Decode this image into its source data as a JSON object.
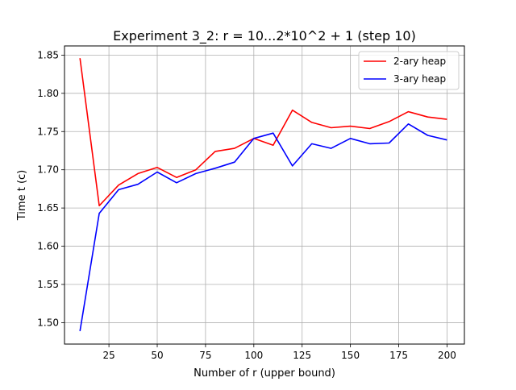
{
  "chart_data": {
    "type": "line",
    "title": "Experiment 3_2: r = 10...2*10^2 + 1 (step 10)",
    "xlabel": "Number of r (upper bound)",
    "ylabel": "Time t (c)",
    "xlim": [
      2,
      209
    ],
    "ylim": [
      1.472,
      1.862
    ],
    "xticks": [
      25,
      50,
      75,
      100,
      125,
      150,
      175,
      200
    ],
    "yticks": [
      1.5,
      1.55,
      1.6,
      1.65,
      1.7,
      1.75,
      1.8,
      1.85
    ],
    "ytick_labels": [
      "1.50",
      "1.55",
      "1.60",
      "1.65",
      "1.70",
      "1.75",
      "1.80",
      "1.85"
    ],
    "grid": true,
    "legend_position": "top-right",
    "x": [
      10,
      20,
      30,
      40,
      50,
      60,
      70,
      80,
      90,
      100,
      110,
      120,
      130,
      140,
      150,
      160,
      170,
      180,
      190,
      200
    ],
    "series": [
      {
        "name": "2-ary heap",
        "color": "#ff0000",
        "values": [
          1.846,
          1.653,
          1.68,
          1.695,
          1.703,
          1.69,
          1.7,
          1.724,
          1.728,
          1.741,
          1.732,
          1.778,
          1.762,
          1.755,
          1.757,
          1.754,
          1.763,
          1.776,
          1.769,
          1.766
        ]
      },
      {
        "name": "3-ary heap",
        "color": "#0000ff",
        "values": [
          1.489,
          1.643,
          1.674,
          1.681,
          1.697,
          1.683,
          1.695,
          1.702,
          1.71,
          1.741,
          1.748,
          1.705,
          1.734,
          1.728,
          1.741,
          1.734,
          1.735,
          1.76,
          1.745,
          1.739
        ]
      }
    ]
  }
}
